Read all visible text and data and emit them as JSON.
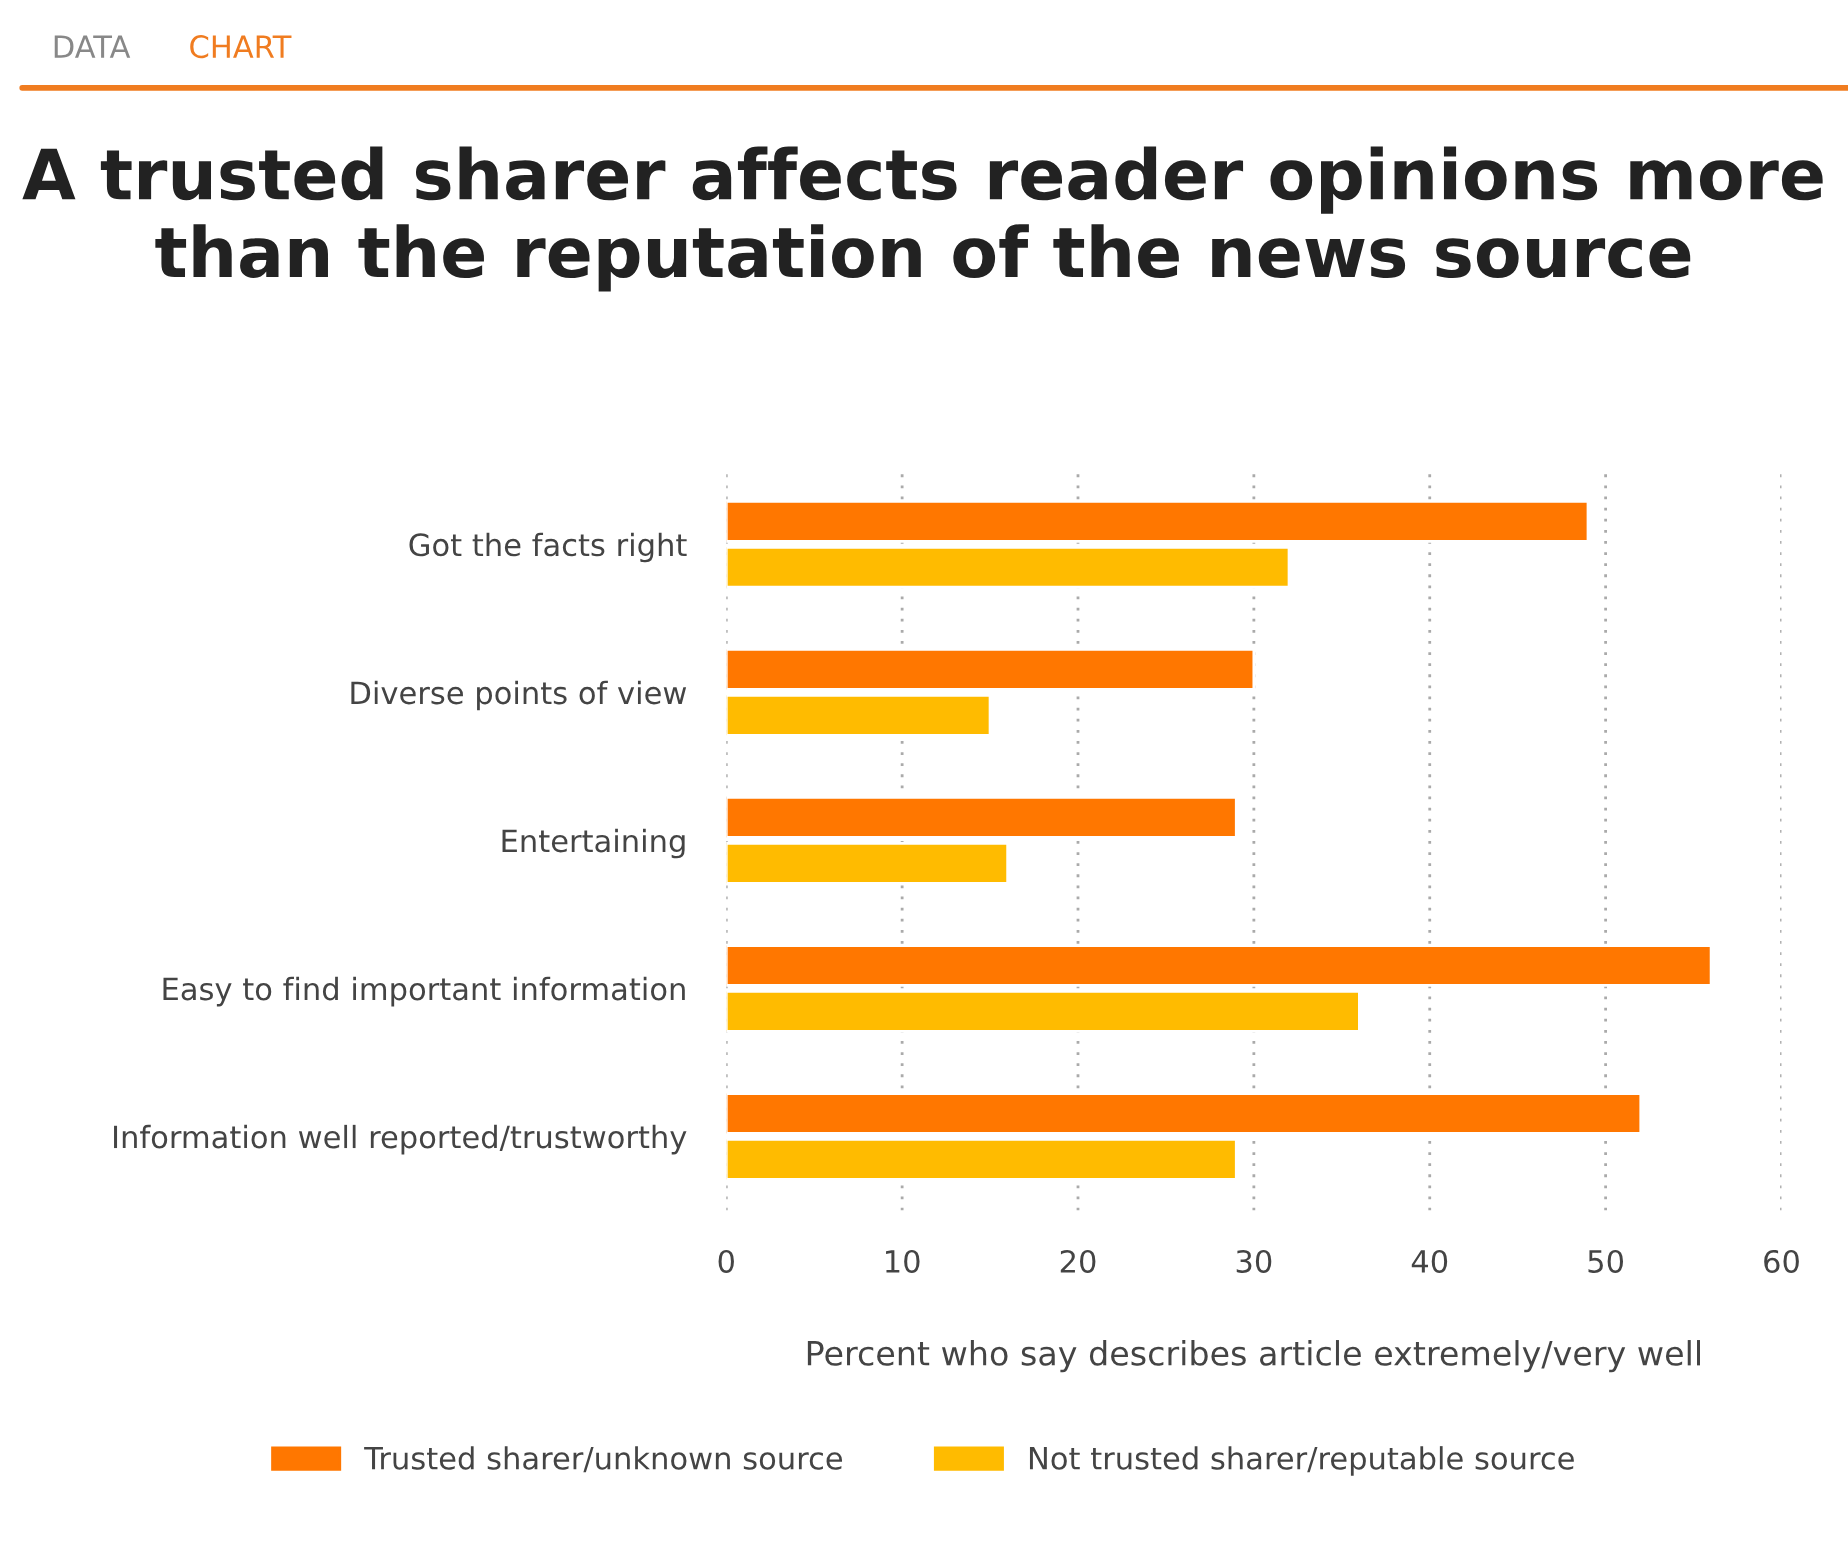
{
  "chart_data": {
    "type": "bar",
    "orientation": "horizontal",
    "title": "A trusted sharer affects reader opinions more\nthan the reputation of the news source",
    "xlabel": "Percent who say describes article extremely/very well",
    "annotations": [
      "DATA",
      "CHART"
    ],
    "categories": [
      "Got the facts right",
      "Diverse points of view",
      "Entertaining",
      "Easy to find important information",
      "Information well reported/trustworthy"
    ],
    "series": [
      {
        "name": "Trusted sharer/unknown source",
        "color": "#ff7700",
        "values": [
          49,
          30,
          29,
          56,
          52
        ]
      },
      {
        "name": "Not trusted sharer/reputable source",
        "color": "#ffbb00",
        "values": [
          32,
          15,
          16,
          36,
          29
        ]
      }
    ],
    "xlim": [
      0,
      60
    ],
    "xticks": [
      0,
      10,
      20,
      30,
      40,
      50,
      60
    ],
    "grid": "x",
    "legend": "bottom"
  }
}
